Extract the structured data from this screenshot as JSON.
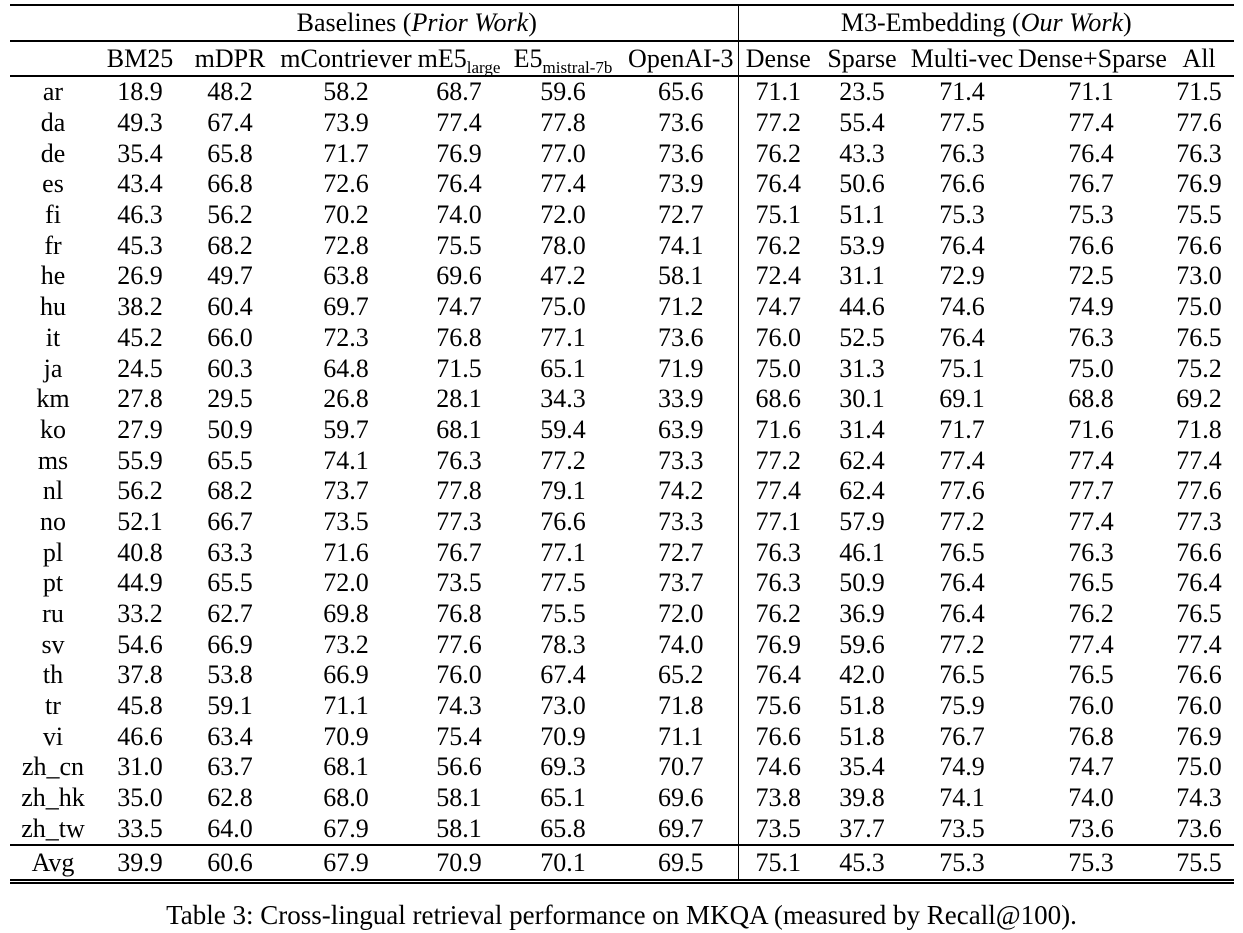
{
  "table": {
    "group_headers": [
      {
        "prefix": "Baselines (",
        "italic": "Prior Work",
        "suffix": ")",
        "span": 6
      },
      {
        "prefix": "M3-Embedding (",
        "italic": "Our Work",
        "suffix": ")",
        "span": 5
      }
    ],
    "columns": [
      {
        "label": "BM25"
      },
      {
        "label": "mDPR"
      },
      {
        "label": "mContriever"
      },
      {
        "label": "mE5",
        "sub": "large"
      },
      {
        "label": "E5",
        "sub": "mistral-7b"
      },
      {
        "label": "OpenAI-3"
      },
      {
        "label": "Dense"
      },
      {
        "label": "Sparse"
      },
      {
        "label": "Multi-vec"
      },
      {
        "label": "Dense+Sparse"
      },
      {
        "label": "All"
      }
    ],
    "rows": [
      {
        "lang": "ar",
        "values": [
          "18.9",
          "48.2",
          "58.2",
          "68.7",
          "59.6",
          "65.6",
          "71.1",
          "23.5",
          "71.4",
          "71.1",
          "71.5"
        ],
        "bold": [
          0,
          0,
          0,
          0,
          0,
          0,
          0,
          0,
          0,
          0,
          1
        ]
      },
      {
        "lang": "da",
        "values": [
          "49.3",
          "67.4",
          "73.9",
          "77.4",
          "77.8",
          "73.6",
          "77.2",
          "55.4",
          "77.5",
          "77.4",
          "77.6"
        ],
        "bold": [
          0,
          0,
          0,
          0,
          1,
          0,
          0,
          0,
          0,
          0,
          0
        ]
      },
      {
        "lang": "de",
        "values": [
          "35.4",
          "65.8",
          "71.7",
          "76.9",
          "77.0",
          "73.6",
          "76.2",
          "43.3",
          "76.3",
          "76.4",
          "76.3"
        ],
        "bold": [
          0,
          0,
          0,
          0,
          1,
          0,
          0,
          0,
          0,
          0,
          0
        ]
      },
      {
        "lang": "es",
        "values": [
          "43.4",
          "66.8",
          "72.6",
          "76.4",
          "77.4",
          "73.9",
          "76.4",
          "50.6",
          "76.6",
          "76.7",
          "76.9"
        ],
        "bold": [
          0,
          0,
          0,
          0,
          1,
          0,
          0,
          0,
          0,
          0,
          0
        ]
      },
      {
        "lang": "fi",
        "values": [
          "46.3",
          "56.2",
          "70.2",
          "74.0",
          "72.0",
          "72.7",
          "75.1",
          "51.1",
          "75.3",
          "75.3",
          "75.5"
        ],
        "bold": [
          0,
          0,
          0,
          0,
          0,
          0,
          0,
          0,
          0,
          0,
          1
        ]
      },
      {
        "lang": "fr",
        "values": [
          "45.3",
          "68.2",
          "72.8",
          "75.5",
          "78.0",
          "74.1",
          "76.2",
          "53.9",
          "76.4",
          "76.6",
          "76.6"
        ],
        "bold": [
          0,
          0,
          0,
          0,
          1,
          0,
          0,
          0,
          0,
          0,
          0
        ]
      },
      {
        "lang": "he",
        "values": [
          "26.9",
          "49.7",
          "63.8",
          "69.6",
          "47.2",
          "58.1",
          "72.4",
          "31.1",
          "72.9",
          "72.5",
          "73.0"
        ],
        "bold": [
          0,
          0,
          0,
          0,
          0,
          0,
          0,
          0,
          0,
          0,
          1
        ]
      },
      {
        "lang": "hu",
        "values": [
          "38.2",
          "60.4",
          "69.7",
          "74.7",
          "75.0",
          "71.2",
          "74.7",
          "44.6",
          "74.6",
          "74.9",
          "75.0"
        ],
        "bold": [
          0,
          0,
          0,
          0,
          1,
          0,
          0,
          0,
          0,
          0,
          1
        ]
      },
      {
        "lang": "it",
        "values": [
          "45.2",
          "66.0",
          "72.3",
          "76.8",
          "77.1",
          "73.6",
          "76.0",
          "52.5",
          "76.4",
          "76.3",
          "76.5"
        ],
        "bold": [
          0,
          0,
          0,
          0,
          1,
          0,
          0,
          0,
          0,
          0,
          0
        ]
      },
      {
        "lang": "ja",
        "values": [
          "24.5",
          "60.3",
          "64.8",
          "71.5",
          "65.1",
          "71.9",
          "75.0",
          "31.3",
          "75.1",
          "75.0",
          "75.2"
        ],
        "bold": [
          0,
          0,
          0,
          0,
          0,
          0,
          0,
          0,
          0,
          0,
          1
        ]
      },
      {
        "lang": "km",
        "values": [
          "27.8",
          "29.5",
          "26.8",
          "28.1",
          "34.3",
          "33.9",
          "68.6",
          "30.1",
          "69.1",
          "68.8",
          "69.2"
        ],
        "bold": [
          0,
          0,
          0,
          0,
          0,
          0,
          0,
          0,
          0,
          0,
          1
        ]
      },
      {
        "lang": "ko",
        "values": [
          "27.9",
          "50.9",
          "59.7",
          "68.1",
          "59.4",
          "63.9",
          "71.6",
          "31.4",
          "71.7",
          "71.6",
          "71.8"
        ],
        "bold": [
          0,
          0,
          0,
          0,
          0,
          0,
          0,
          0,
          0,
          0,
          1
        ]
      },
      {
        "lang": "ms",
        "values": [
          "55.9",
          "65.5",
          "74.1",
          "76.3",
          "77.2",
          "73.3",
          "77.2",
          "62.4",
          "77.4",
          "77.4",
          "77.4"
        ],
        "bold": [
          0,
          0,
          0,
          0,
          0,
          0,
          0,
          0,
          1,
          1,
          1
        ]
      },
      {
        "lang": "nl",
        "values": [
          "56.2",
          "68.2",
          "73.7",
          "77.8",
          "79.1",
          "74.2",
          "77.4",
          "62.4",
          "77.6",
          "77.7",
          "77.6"
        ],
        "bold": [
          0,
          0,
          0,
          0,
          1,
          0,
          0,
          0,
          0,
          0,
          0
        ]
      },
      {
        "lang": "no",
        "values": [
          "52.1",
          "66.7",
          "73.5",
          "77.3",
          "76.6",
          "73.3",
          "77.1",
          "57.9",
          "77.2",
          "77.4",
          "77.3"
        ],
        "bold": [
          0,
          0,
          0,
          0,
          0,
          0,
          0,
          0,
          0,
          1,
          0
        ]
      },
      {
        "lang": "pl",
        "values": [
          "40.8",
          "63.3",
          "71.6",
          "76.7",
          "77.1",
          "72.7",
          "76.3",
          "46.1",
          "76.5",
          "76.3",
          "76.6"
        ],
        "bold": [
          0,
          0,
          0,
          0,
          1,
          0,
          0,
          0,
          0,
          0,
          0
        ]
      },
      {
        "lang": "pt",
        "values": [
          "44.9",
          "65.5",
          "72.0",
          "73.5",
          "77.5",
          "73.7",
          "76.3",
          "50.9",
          "76.4",
          "76.5",
          "76.4"
        ],
        "bold": [
          0,
          0,
          0,
          0,
          1,
          0,
          0,
          0,
          0,
          0,
          0
        ]
      },
      {
        "lang": "ru",
        "values": [
          "33.2",
          "62.7",
          "69.8",
          "76.8",
          "75.5",
          "72.0",
          "76.2",
          "36.9",
          "76.4",
          "76.2",
          "76.5"
        ],
        "bold": [
          0,
          0,
          0,
          1,
          0,
          0,
          0,
          0,
          0,
          0,
          0
        ]
      },
      {
        "lang": "sv",
        "values": [
          "54.6",
          "66.9",
          "73.2",
          "77.6",
          "78.3",
          "74.0",
          "76.9",
          "59.6",
          "77.2",
          "77.4",
          "77.4"
        ],
        "bold": [
          0,
          0,
          0,
          0,
          1,
          0,
          0,
          0,
          0,
          0,
          0
        ]
      },
      {
        "lang": "th",
        "values": [
          "37.8",
          "53.8",
          "66.9",
          "76.0",
          "67.4",
          "65.2",
          "76.4",
          "42.0",
          "76.5",
          "76.5",
          "76.6"
        ],
        "bold": [
          0,
          0,
          0,
          0,
          0,
          0,
          0,
          0,
          0,
          0,
          1
        ]
      },
      {
        "lang": "tr",
        "values": [
          "45.8",
          "59.1",
          "71.1",
          "74.3",
          "73.0",
          "71.8",
          "75.6",
          "51.8",
          "75.9",
          "76.0",
          "76.0"
        ],
        "bold": [
          0,
          0,
          0,
          0,
          0,
          0,
          0,
          0,
          0,
          1,
          1
        ]
      },
      {
        "lang": "vi",
        "values": [
          "46.6",
          "63.4",
          "70.9",
          "75.4",
          "70.9",
          "71.1",
          "76.6",
          "51.8",
          "76.7",
          "76.8",
          "76.9"
        ],
        "bold": [
          0,
          0,
          0,
          0,
          0,
          0,
          0,
          0,
          0,
          0,
          1
        ]
      },
      {
        "lang": "zh_cn",
        "values": [
          "31.0",
          "63.7",
          "68.1",
          "56.6",
          "69.3",
          "70.7",
          "74.6",
          "35.4",
          "74.9",
          "74.7",
          "75.0"
        ],
        "bold": [
          0,
          0,
          0,
          0,
          0,
          0,
          0,
          0,
          0,
          0,
          1
        ]
      },
      {
        "lang": "zh_hk",
        "values": [
          "35.0",
          "62.8",
          "68.0",
          "58.1",
          "65.1",
          "69.6",
          "73.8",
          "39.8",
          "74.1",
          "74.0",
          "74.3"
        ],
        "bold": [
          0,
          0,
          0,
          0,
          0,
          0,
          0,
          0,
          0,
          0,
          1
        ]
      },
      {
        "lang": "zh_tw",
        "values": [
          "33.5",
          "64.0",
          "67.9",
          "58.1",
          "65.8",
          "69.7",
          "73.5",
          "37.7",
          "73.5",
          "73.6",
          "73.6"
        ],
        "bold": [
          0,
          0,
          0,
          0,
          0,
          0,
          0,
          0,
          0,
          1,
          1
        ]
      }
    ],
    "avg_row": {
      "lang": "Avg",
      "values": [
        "39.9",
        "60.6",
        "67.9",
        "70.9",
        "70.1",
        "69.5",
        "75.1",
        "45.3",
        "75.3",
        "75.3",
        "75.5"
      ],
      "bold": [
        0,
        0,
        0,
        0,
        0,
        0,
        0,
        0,
        0,
        0,
        1
      ]
    }
  },
  "caption": "Table 3: Cross-lingual retrieval performance on MKQA (measured by Recall@100)."
}
